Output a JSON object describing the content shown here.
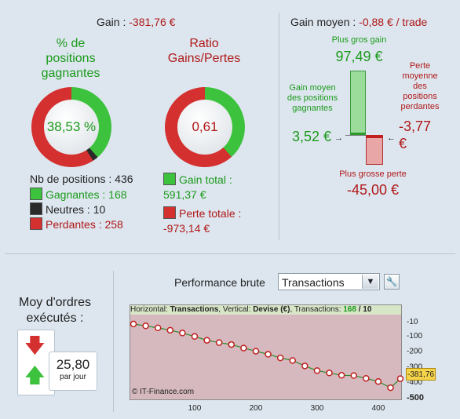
{
  "summary": {
    "gain_label": "Gain : ",
    "gain_value": "-381,76 €",
    "pct_title": "% de positions gagnantes",
    "pct_value": "38,53 %",
    "pct_fraction": 0.3853,
    "ratio_title": "Ratio Gains/Pertes",
    "ratio_value": "0,61",
    "nb_positions": "Nb de positions : 436",
    "gagnantes": "Gagnantes : 168",
    "neutres": "Neutres : 10",
    "perdantes": "Perdantes : 258",
    "gain_total_label": "Gain total :",
    "gain_total_value": "591,37 €",
    "perte_totale_label": "Perte totale :",
    "perte_totale_value": "-973,14 €"
  },
  "gain_moyen": {
    "label": "Gain moyen : ",
    "value": "-0,88 € / trade",
    "plus_gros_gain_label": "Plus gros gain",
    "plus_gros_gain_value": "97,49 €",
    "gain_moyen_gagnantes_label": "Gain moyen des positions gagnantes",
    "gain_moyen_gagnantes_value": "3,52 €",
    "perte_moyenne_label": "Perte moyenne des positions perdantes",
    "perte_moyenne_value": "-3,77 €",
    "plus_grosse_perte_label": "Plus grosse perte",
    "plus_grosse_perte_value": "-45,00 €"
  },
  "orders": {
    "label": "Moy d'ordres exécutés :",
    "value": "25,80",
    "unit": "par jour"
  },
  "performance": {
    "label": "Performance brute",
    "select_value": "Transactions",
    "header_prefix": "Horizontal: ",
    "header_h": "Transactions",
    "header_mid": ", Vertical: ",
    "header_v": "Devise (€)",
    "header_tr": ", Transactions: ",
    "header_count": "168",
    "header_tail": " / 10",
    "watermark": "© IT-Finance.com",
    "last_value": "-381,76"
  },
  "chart_data": {
    "type": "line",
    "xlabel": "",
    "ylabel": "",
    "xlim": [
      0,
      436
    ],
    "ylim": [
      -500,
      10
    ],
    "x_ticks": [
      "100",
      "200",
      "300",
      "400"
    ],
    "y_ticks": [
      "-10",
      "-100",
      "-200",
      "-300",
      "-400",
      "-500"
    ],
    "series": [
      {
        "x": [
          0,
          20,
          40,
          60,
          80,
          100,
          120,
          140,
          160,
          180,
          200,
          220,
          240,
          260,
          280,
          300,
          320,
          340,
          360,
          380,
          400,
          420,
          436
        ],
        "y": [
          -30,
          -42,
          -55,
          -70,
          -88,
          -110,
          -135,
          -150,
          -162,
          -185,
          -205,
          -225,
          -248,
          -265,
          -300,
          -330,
          -345,
          -360,
          -362,
          -380,
          -400,
          -440,
          -381.76
        ]
      }
    ]
  },
  "colors": {
    "green": "#1a9a1a",
    "red": "#b01818",
    "panel_bg": "#dde6ef",
    "chart_bg": "#d6b9bf"
  }
}
